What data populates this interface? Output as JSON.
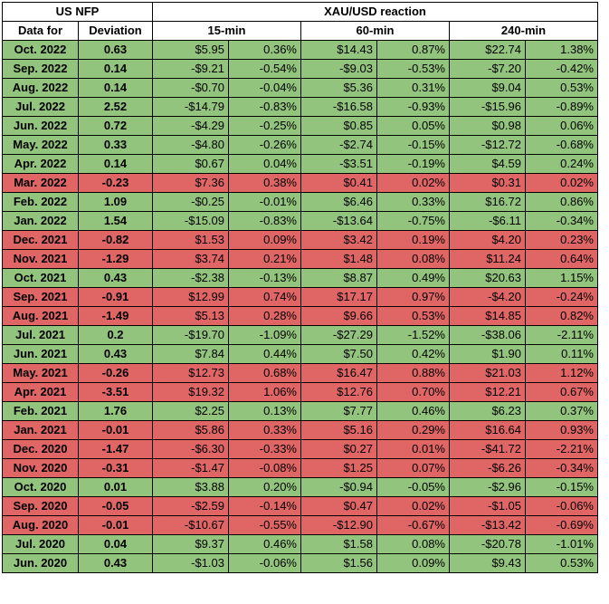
{
  "header": {
    "group_left": "US NFP",
    "group_right": "XAU/USD reaction",
    "col_date": "Data for",
    "col_dev": "Deviation",
    "col_15": "15-min",
    "col_60": "60-min",
    "col_240": "240-min"
  },
  "colors": {
    "positive": "#93c47d",
    "negative": "#e06666"
  },
  "rows": [
    {
      "date": "Oct. 2022",
      "dev": "0.63",
      "r15d": "$5.95",
      "r15p": "0.36%",
      "r60d": "$14.43",
      "r60p": "0.87%",
      "r240d": "$22.74",
      "r240p": "1.38%",
      "neg": false
    },
    {
      "date": "Sep. 2022",
      "dev": "0.14",
      "r15d": "-$9.21",
      "r15p": "-0.54%",
      "r60d": "-$9.03",
      "r60p": "-0.53%",
      "r240d": "-$7.20",
      "r240p": "-0.42%",
      "neg": false
    },
    {
      "date": "Aug. 2022",
      "dev": "0.14",
      "r15d": "-$0.70",
      "r15p": "-0.04%",
      "r60d": "$5.36",
      "r60p": "0.31%",
      "r240d": "$9.04",
      "r240p": "0.53%",
      "neg": false
    },
    {
      "date": "Jul. 2022",
      "dev": "2.52",
      "r15d": "-$14.79",
      "r15p": "-0.83%",
      "r60d": "-$16.58",
      "r60p": "-0.93%",
      "r240d": "-$15.96",
      "r240p": "-0.89%",
      "neg": false
    },
    {
      "date": "Jun. 2022",
      "dev": "0.72",
      "r15d": "-$4.29",
      "r15p": "-0.25%",
      "r60d": "$0.85",
      "r60p": "0.05%",
      "r240d": "$0.98",
      "r240p": "0.06%",
      "neg": false
    },
    {
      "date": "May. 2022",
      "dev": "0.33",
      "r15d": "-$4.80",
      "r15p": "-0.26%",
      "r60d": "-$2.74",
      "r60p": "-0.15%",
      "r240d": "-$12.72",
      "r240p": "-0.68%",
      "neg": false
    },
    {
      "date": "Apr. 2022",
      "dev": "0.14",
      "r15d": "$0.67",
      "r15p": "0.04%",
      "r60d": "-$3.51",
      "r60p": "-0.19%",
      "r240d": "$4.59",
      "r240p": "0.24%",
      "neg": false
    },
    {
      "date": "Mar. 2022",
      "dev": "-0.23",
      "r15d": "$7.36",
      "r15p": "0.38%",
      "r60d": "$0.41",
      "r60p": "0.02%",
      "r240d": "$0.31",
      "r240p": "0.02%",
      "neg": true
    },
    {
      "date": "Feb. 2022",
      "dev": "1.09",
      "r15d": "-$0.25",
      "r15p": "-0.01%",
      "r60d": "$6.46",
      "r60p": "0.33%",
      "r240d": "$16.72",
      "r240p": "0.86%",
      "neg": false
    },
    {
      "date": "Jan. 2022",
      "dev": "1.54",
      "r15d": "-$15.09",
      "r15p": "-0.83%",
      "r60d": "-$13.64",
      "r60p": "-0.75%",
      "r240d": "-$6.11",
      "r240p": "-0.34%",
      "neg": false
    },
    {
      "date": "Dec. 2021",
      "dev": "-0.82",
      "r15d": "$1.53",
      "r15p": "0.09%",
      "r60d": "$3.42",
      "r60p": "0.19%",
      "r240d": "$4.20",
      "r240p": "0.23%",
      "neg": true
    },
    {
      "date": "Nov. 2021",
      "dev": "-1.29",
      "r15d": "$3.74",
      "r15p": "0.21%",
      "r60d": "$1.48",
      "r60p": "0.08%",
      "r240d": "$11.24",
      "r240p": "0.64%",
      "neg": true
    },
    {
      "date": "Oct. 2021",
      "dev": "0.43",
      "r15d": "-$2.38",
      "r15p": "-0.13%",
      "r60d": "$8.87",
      "r60p": "0.49%",
      "r240d": "$20.63",
      "r240p": "1.15%",
      "neg": false
    },
    {
      "date": "Sep. 2021",
      "dev": "-0.91",
      "r15d": "$12.99",
      "r15p": "0.74%",
      "r60d": "$17.17",
      "r60p": "0.97%",
      "r240d": "-$4.20",
      "r240p": "-0.24%",
      "neg": true
    },
    {
      "date": "Aug. 2021",
      "dev": "-1.49",
      "r15d": "$5.13",
      "r15p": "0.28%",
      "r60d": "$9.66",
      "r60p": "0.53%",
      "r240d": "$14.85",
      "r240p": "0.82%",
      "neg": true
    },
    {
      "date": "Jul. 2021",
      "dev": "0.2",
      "r15d": "-$19.70",
      "r15p": "-1.09%",
      "r60d": "-$27.29",
      "r60p": "-1.52%",
      "r240d": "-$38.06",
      "r240p": "-2.11%",
      "neg": false
    },
    {
      "date": "Jun. 2021",
      "dev": "0.43",
      "r15d": "$7.84",
      "r15p": "0.44%",
      "r60d": "$7.50",
      "r60p": "0.42%",
      "r240d": "$1.90",
      "r240p": "0.11%",
      "neg": false
    },
    {
      "date": "May. 2021",
      "dev": "-0.26",
      "r15d": "$12.73",
      "r15p": "0.68%",
      "r60d": "$16.47",
      "r60p": "0.88%",
      "r240d": "$21.03",
      "r240p": "1.12%",
      "neg": true
    },
    {
      "date": "Apr. 2021",
      "dev": "-3.51",
      "r15d": "$19.32",
      "r15p": "1.06%",
      "r60d": "$12.76",
      "r60p": "0.70%",
      "r240d": "$12.21",
      "r240p": "0.67%",
      "neg": true
    },
    {
      "date": "Feb. 2021",
      "dev": "1.76",
      "r15d": "$2.25",
      "r15p": "0.13%",
      "r60d": "$7.77",
      "r60p": "0.46%",
      "r240d": "$6.23",
      "r240p": "0.37%",
      "neg": false
    },
    {
      "date": "Jan. 2021",
      "dev": "-0.01",
      "r15d": "$5.86",
      "r15p": "0.33%",
      "r60d": "$5.16",
      "r60p": "0.29%",
      "r240d": "$16.64",
      "r240p": "0.93%",
      "neg": true
    },
    {
      "date": "Dec. 2020",
      "dev": "-1.47",
      "r15d": "-$6.30",
      "r15p": "-0.33%",
      "r60d": "$0.27",
      "r60p": "0.01%",
      "r240d": "-$41.72",
      "r240p": "-2.21%",
      "neg": true
    },
    {
      "date": "Nov. 2020",
      "dev": "-0.31",
      "r15d": "-$1.47",
      "r15p": "-0.08%",
      "r60d": "$1.25",
      "r60p": "0.07%",
      "r240d": "-$6.26",
      "r240p": "-0.34%",
      "neg": true
    },
    {
      "date": "Oct. 2020",
      "dev": "0.01",
      "r15d": "$3.88",
      "r15p": "0.20%",
      "r60d": "-$0.94",
      "r60p": "-0.05%",
      "r240d": "-$2.96",
      "r240p": "-0.15%",
      "neg": false
    },
    {
      "date": "Sep. 2020",
      "dev": "-0.05",
      "r15d": "-$2.59",
      "r15p": "-0.14%",
      "r60d": "$0.47",
      "r60p": "0.02%",
      "r240d": "-$1.05",
      "r240p": "-0.06%",
      "neg": true
    },
    {
      "date": "Aug. 2020",
      "dev": "-0.01",
      "r15d": "-$10.67",
      "r15p": "-0.55%",
      "r60d": "-$12.90",
      "r60p": "-0.67%",
      "r240d": "-$13.42",
      "r240p": "-0.69%",
      "neg": true
    },
    {
      "date": "Jul. 2020",
      "dev": "0.04",
      "r15d": "$9.37",
      "r15p": "0.46%",
      "r60d": "$1.58",
      "r60p": "0.08%",
      "r240d": "-$20.78",
      "r240p": "-1.01%",
      "neg": false
    },
    {
      "date": "Jun. 2020",
      "dev": "0.43",
      "r15d": "-$1.03",
      "r15p": "-0.06%",
      "r60d": "$1.56",
      "r60p": "0.09%",
      "r240d": "$9.43",
      "r240p": "0.53%",
      "neg": false
    }
  ]
}
